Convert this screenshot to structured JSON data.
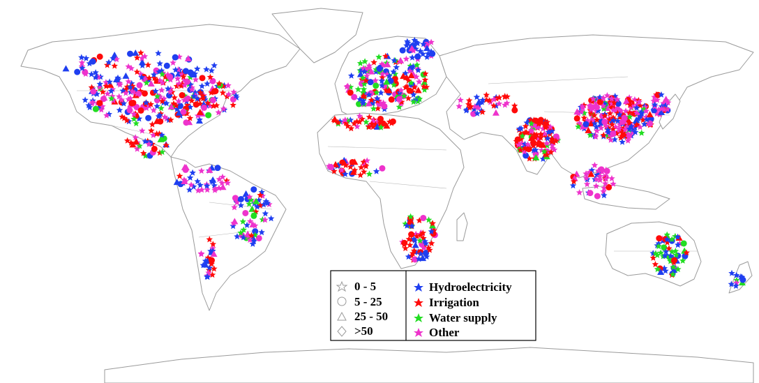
{
  "legend": {
    "size_classes": [
      {
        "label": "0 - 5",
        "symbol": "star"
      },
      {
        "label": "5 - 25",
        "symbol": "circle"
      },
      {
        "label": "25 - 50",
        "symbol": "triangle"
      },
      {
        "label": ">50",
        "symbol": "diamond"
      }
    ],
    "purposes": [
      {
        "label": "Hydroelectricity",
        "color": "#1f3ff0"
      },
      {
        "label": "Irrigation",
        "color": "#ff0a0a"
      },
      {
        "label": "Water supply",
        "color": "#22dd22"
      },
      {
        "label": "Other",
        "color": "#ee33cc"
      }
    ]
  },
  "colors": {
    "hydroelectricity": "#1f3ff0",
    "irrigation": "#ff0a0a",
    "water_supply": "#22dd22",
    "other": "#ee33cc",
    "coastline": "#9a9a9a"
  }
}
